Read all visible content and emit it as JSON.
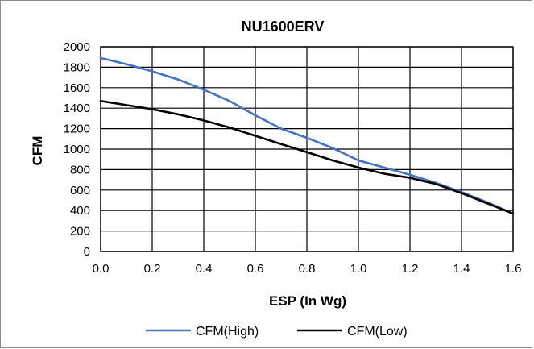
{
  "chart_data": {
    "type": "line",
    "title": "NU1600ERV",
    "xlabel": "ESP (In Wg)",
    "ylabel": "CFM",
    "xlim": [
      0.0,
      1.6
    ],
    "ylim": [
      0,
      2000
    ],
    "xticks": [
      0.0,
      0.2,
      0.4,
      0.6,
      0.8,
      1.0,
      1.2,
      1.4,
      1.6
    ],
    "yticks": [
      0,
      200,
      400,
      600,
      800,
      1000,
      1200,
      1400,
      1600,
      1800,
      2000
    ],
    "xtick_labels": [
      "0.0",
      "0.2",
      "0.4",
      "0.6",
      "0.8",
      "1.0",
      "1.2",
      "1.4",
      "1.6"
    ],
    "ytick_labels": [
      "0",
      "200",
      "400",
      "600",
      "800",
      "1000",
      "1200",
      "1400",
      "1600",
      "1800",
      "2000"
    ],
    "grid": true,
    "legend_position": "bottom",
    "series": [
      {
        "name": "CFM(High)",
        "color": "#4472C4",
        "x": [
          0.0,
          0.1,
          0.2,
          0.3,
          0.4,
          0.5,
          0.6,
          0.7,
          0.8,
          0.9,
          1.0,
          1.1,
          1.2,
          1.3,
          1.4,
          1.5,
          1.6
        ],
        "y": [
          1890,
          1830,
          1760,
          1680,
          1580,
          1470,
          1330,
          1200,
          1110,
          1010,
          890,
          820,
          750,
          670,
          580,
          480,
          370
        ]
      },
      {
        "name": "CFM(Low)",
        "color": "#000000",
        "x": [
          0.0,
          0.1,
          0.2,
          0.3,
          0.4,
          0.5,
          0.6,
          0.7,
          0.8,
          0.9,
          1.0,
          1.1,
          1.2,
          1.3,
          1.4,
          1.5,
          1.6
        ],
        "y": [
          1470,
          1430,
          1390,
          1340,
          1280,
          1210,
          1130,
          1050,
          970,
          890,
          820,
          760,
          720,
          660,
          570,
          470,
          370
        ]
      }
    ]
  }
}
